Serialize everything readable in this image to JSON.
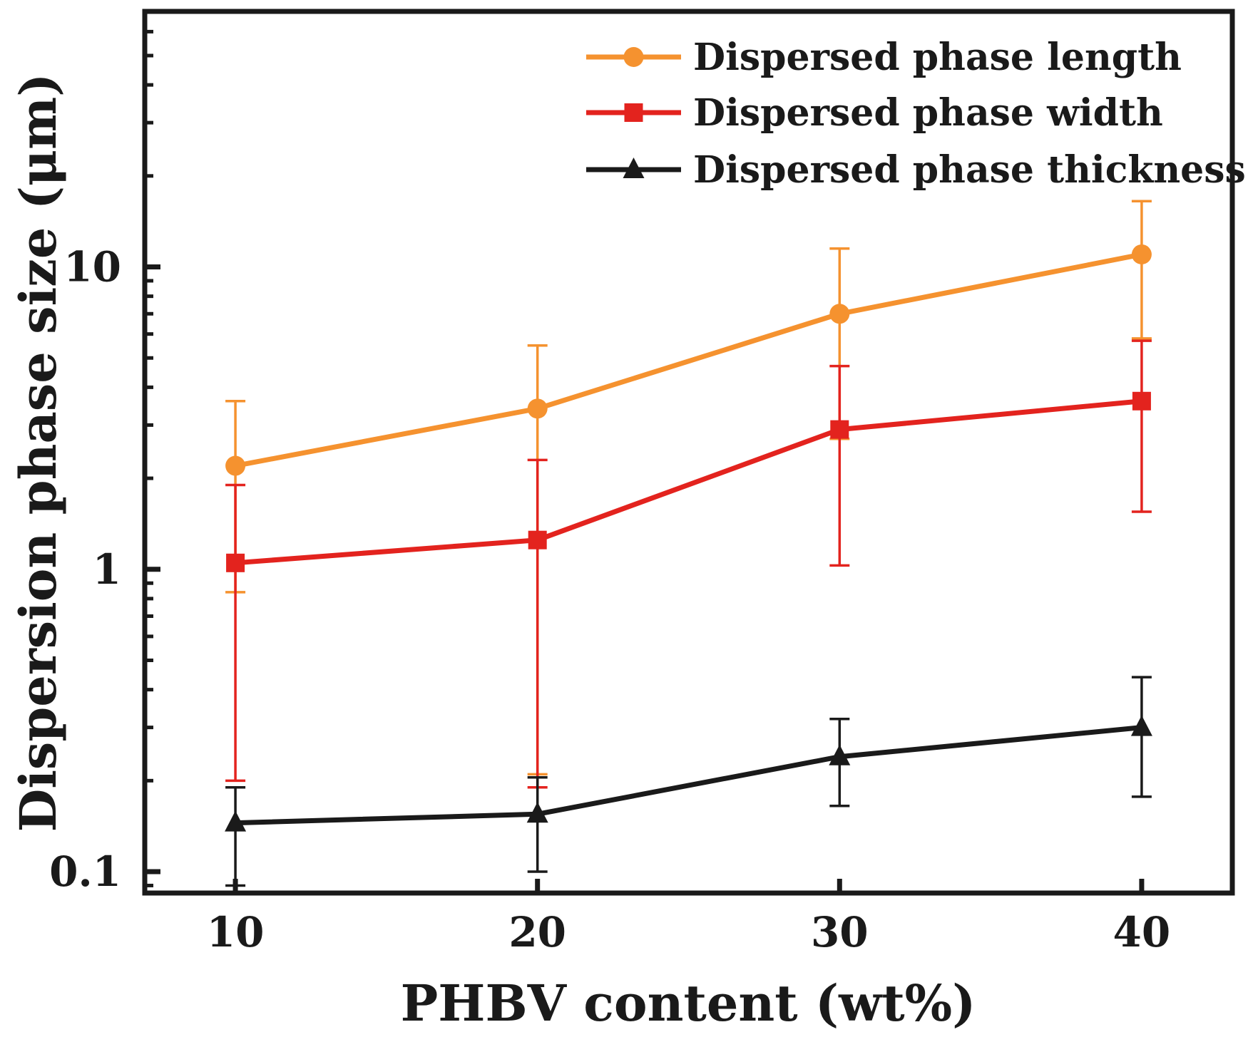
{
  "chart_data": {
    "type": "line",
    "xlabel": "PHBV content (wt%)",
    "ylabel": "Dispersion phase size (μm)",
    "yscale": "log",
    "xlim": [
      7,
      43
    ],
    "ylim": [
      0.085,
      70
    ],
    "x_ticks": [
      10,
      20,
      30,
      40
    ],
    "x_tick_labels": [
      "10",
      "20",
      "30",
      "40"
    ],
    "y_ticks": [
      0.1,
      1,
      10
    ],
    "y_tick_labels": [
      "0.1",
      "1",
      "10"
    ],
    "legend_position": "top-right",
    "series": [
      {
        "name": "Dispersed phase length",
        "color": "#F5922F",
        "marker": "circle",
        "x": [
          10,
          20,
          30,
          40
        ],
        "y": [
          2.2,
          3.4,
          7.0,
          11.0
        ],
        "err_high": [
          3.6,
          5.5,
          11.5,
          16.5
        ],
        "err_low": [
          0.84,
          0.21,
          2.7,
          5.8
        ]
      },
      {
        "name": "Dispersed phase width",
        "color": "#E3231E",
        "marker": "square",
        "x": [
          10,
          20,
          30,
          40
        ],
        "y": [
          1.05,
          1.25,
          2.9,
          3.6
        ],
        "err_high": [
          1.9,
          2.3,
          4.7,
          5.7
        ],
        "err_low": [
          0.2,
          0.19,
          1.03,
          1.55
        ]
      },
      {
        "name": "Dispersed phase thickness",
        "color": "#1A1A1A",
        "marker": "triangle",
        "x": [
          10,
          20,
          30,
          40
        ],
        "y": [
          0.145,
          0.155,
          0.24,
          0.3
        ],
        "err_high": [
          0.19,
          0.205,
          0.32,
          0.44
        ],
        "err_low": [
          0.09,
          0.1,
          0.165,
          0.177
        ]
      }
    ]
  }
}
